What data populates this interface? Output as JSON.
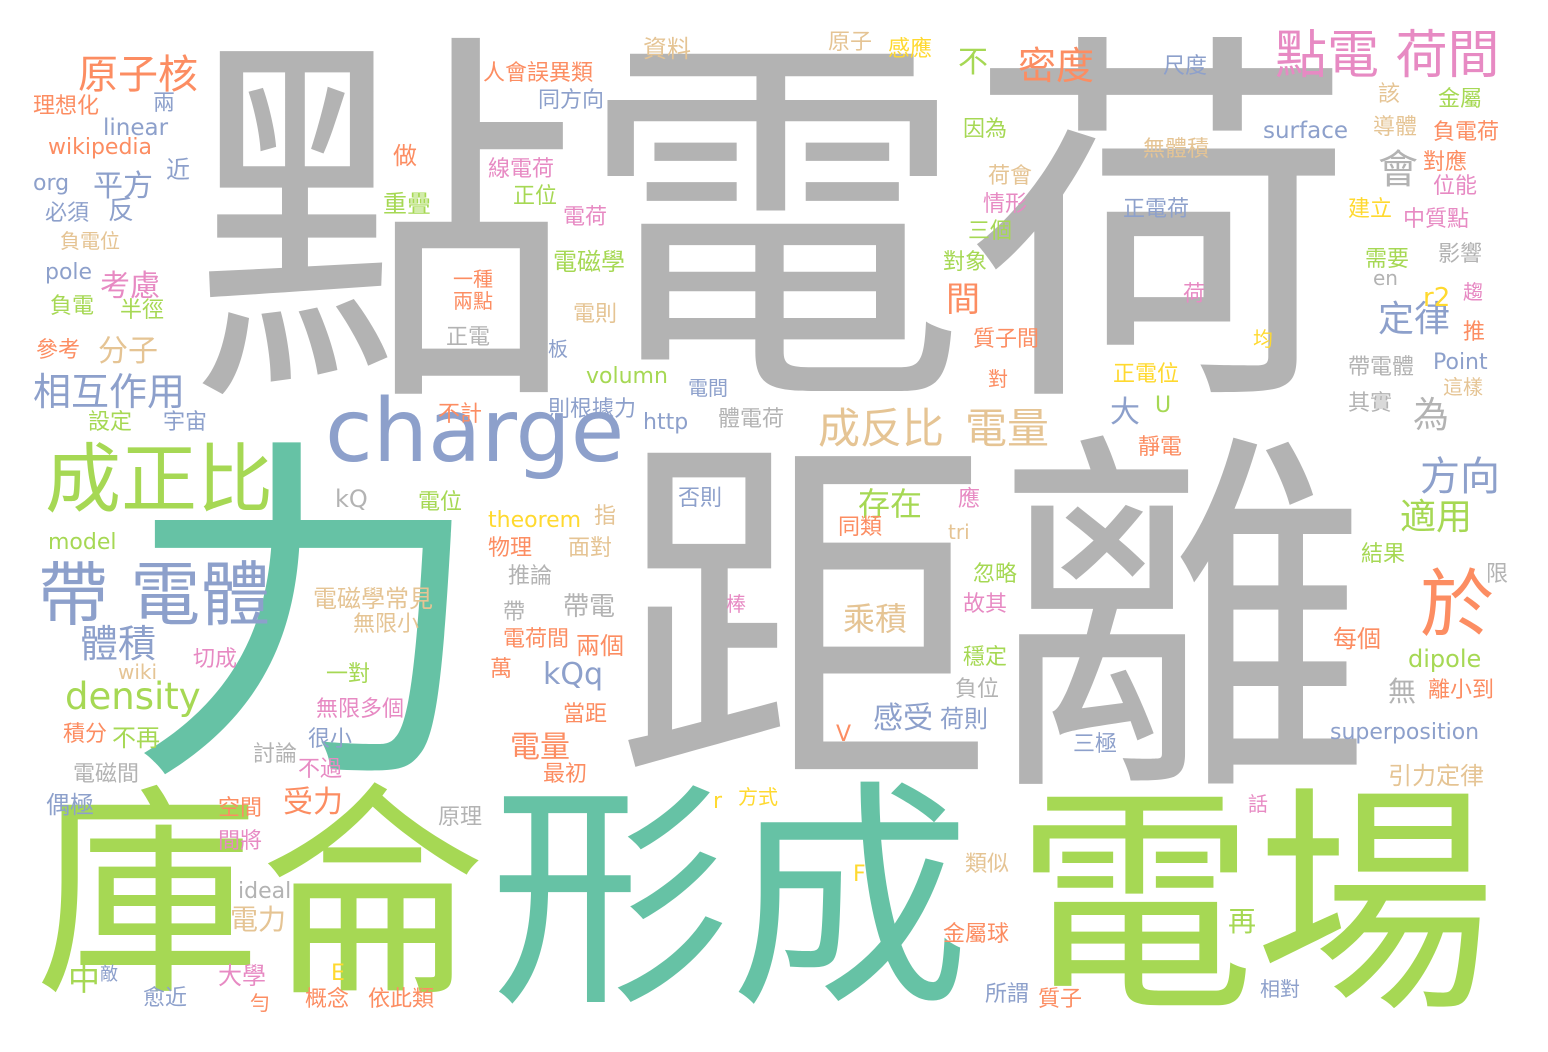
{
  "palette": {
    "gray": "#b3b3b3",
    "teal": "#66c2a5",
    "lime": "#a6d854",
    "blue": "#8da0cb",
    "orange": "#fc8d62",
    "pink": "#e78ac3",
    "tan": "#e5c494",
    "yellow": "#ffd92f"
  },
  "words": [
    {
      "text": "點電荷",
      "color": "#b3b3b3"
    },
    {
      "text": "距離",
      "color": "#b3b3b3"
    },
    {
      "text": "力",
      "color": "#66c2a5"
    },
    {
      "text": "庫侖",
      "color": "#a6d854"
    },
    {
      "text": "形成",
      "color": "#66c2a5"
    },
    {
      "text": "電場",
      "color": "#a6d854"
    },
    {
      "text": "charge",
      "color": "#8da0cb"
    },
    {
      "text": "成正比",
      "color": "#a6d854"
    },
    {
      "text": "帶 電體",
      "color": "#8da0cb"
    },
    {
      "text": "點電 荷間",
      "color": "#e78ac3"
    },
    {
      "text": "原子核",
      "color": "#fc8d62"
    },
    {
      "text": "密度",
      "color": "#fc8d62"
    },
    {
      "text": "不",
      "color": "#a6d854"
    },
    {
      "text": "會",
      "color": "#b3b3b3"
    },
    {
      "text": "於",
      "color": "#fc8d62"
    },
    {
      "text": "成反比",
      "color": "#e5c494"
    },
    {
      "text": "電量",
      "color": "#e5c494"
    },
    {
      "text": "density",
      "color": "#a6d854"
    },
    {
      "text": "相互作用",
      "color": "#8da0cb"
    },
    {
      "text": "體積",
      "color": "#8da0cb"
    },
    {
      "text": "方向",
      "color": "#8da0cb"
    },
    {
      "text": "適用",
      "color": "#a6d854"
    },
    {
      "text": "定律",
      "color": "#8da0cb"
    },
    {
      "text": "平方",
      "color": "#8da0cb"
    },
    {
      "text": "分子",
      "color": "#e5c494"
    },
    {
      "text": "考慮",
      "color": "#e78ac3"
    },
    {
      "text": "乘積",
      "color": "#e5c494"
    },
    {
      "text": "存在",
      "color": "#a6d854"
    },
    {
      "text": "感受",
      "color": "#8da0cb"
    },
    {
      "text": "荷則",
      "color": "#8da0cb"
    },
    {
      "text": "電量",
      "color": "#fc8d62"
    },
    {
      "text": "受力",
      "color": "#fc8d62"
    },
    {
      "text": "kQq",
      "color": "#8da0cb"
    },
    {
      "text": "間",
      "color": "#fc8d62"
    },
    {
      "text": "為",
      "color": "#b3b3b3"
    },
    {
      "text": "大",
      "color": "#8da0cb"
    },
    {
      "text": "U",
      "color": "#a6d854"
    },
    {
      "text": "中",
      "color": "#a6d854"
    },
    {
      "text": "敵",
      "color": "#8da0cb"
    },
    {
      "text": "無",
      "color": "#b3b3b3"
    },
    {
      "text": "離小到",
      "color": "#fc8d62"
    },
    {
      "text": "superposition",
      "color": "#8da0cb"
    },
    {
      "text": "surface",
      "color": "#8da0cb"
    },
    {
      "text": "linear",
      "color": "#8da0cb"
    },
    {
      "text": "wikipedia",
      "color": "#fc8d62"
    },
    {
      "text": "org",
      "color": "#8da0cb"
    },
    {
      "text": "必須",
      "color": "#8da0cb"
    },
    {
      "text": "反",
      "color": "#8da0cb"
    },
    {
      "text": "負電位",
      "color": "#e5c494"
    },
    {
      "text": "pole",
      "color": "#8da0cb"
    },
    {
      "text": "負電",
      "color": "#a6d854"
    },
    {
      "text": "半徑",
      "color": "#a6d854"
    },
    {
      "text": "參考",
      "color": "#fc8d62"
    },
    {
      "text": "設定",
      "color": "#a6d854"
    },
    {
      "text": "宇宙",
      "color": "#8da0cb"
    },
    {
      "text": "kQ",
      "color": "#b3b3b3"
    },
    {
      "text": "model",
      "color": "#a6d854"
    },
    {
      "text": "wiki",
      "color": "#e5c494"
    },
    {
      "text": "積分",
      "color": "#fc8d62"
    },
    {
      "text": "不再",
      "color": "#a6d854"
    },
    {
      "text": "電磁間",
      "color": "#b3b3b3"
    },
    {
      "text": "偶極",
      "color": "#8da0cb"
    },
    {
      "text": "愈近",
      "color": "#8da0cb"
    },
    {
      "text": "勻",
      "color": "#fc8d62"
    },
    {
      "text": "大學",
      "color": "#e78ac3"
    },
    {
      "text": "空間",
      "color": "#fc8d62"
    },
    {
      "text": "間將",
      "color": "#e78ac3"
    },
    {
      "text": "切成",
      "color": "#e78ac3"
    },
    {
      "text": "很小",
      "color": "#8da0cb"
    },
    {
      "text": "討論",
      "color": "#b3b3b3"
    },
    {
      "text": "不過",
      "color": "#e78ac3"
    },
    {
      "text": "無限多個",
      "color": "#e78ac3"
    },
    {
      "text": "一對",
      "color": "#a6d854"
    },
    {
      "text": "無限小",
      "color": "#e5c494"
    },
    {
      "text": "電磁學常見",
      "color": "#e5c494"
    },
    {
      "text": "電荷間",
      "color": "#fc8d62"
    },
    {
      "text": "兩個",
      "color": "#fc8d62"
    },
    {
      "text": "萬",
      "color": "#fc8d62"
    },
    {
      "text": "當距",
      "color": "#fc8d62"
    },
    {
      "text": "最初",
      "color": "#fc8d62"
    },
    {
      "text": "推論",
      "color": "#b3b3b3"
    },
    {
      "text": "帶",
      "color": "#b3b3b3"
    },
    {
      "text": "帶電",
      "color": "#b3b3b3"
    },
    {
      "text": "物理",
      "color": "#fc8d62"
    },
    {
      "text": "面對",
      "color": "#e5c494"
    },
    {
      "text": "theorem",
      "color": "#ffd92f"
    },
    {
      "text": "指",
      "color": "#e5c494"
    },
    {
      "text": "電位",
      "color": "#a6d854"
    },
    {
      "text": "則根據力",
      "color": "#8da0cb"
    },
    {
      "text": "不計",
      "color": "#fc8d62"
    },
    {
      "text": "http",
      "color": "#8da0cb"
    },
    {
      "text": "否則",
      "color": "#8da0cb"
    },
    {
      "text": "體電荷",
      "color": "#b3b3b3"
    },
    {
      "text": "電間",
      "color": "#8da0cb"
    },
    {
      "text": "volumn",
      "color": "#a6d854"
    },
    {
      "text": "板",
      "color": "#8da0cb"
    },
    {
      "text": "正電",
      "color": "#b3b3b3"
    },
    {
      "text": "一種",
      "color": "#fc8d62"
    },
    {
      "text": "兩點",
      "color": "#fc8d62"
    },
    {
      "text": "電則",
      "color": "#e5c494"
    },
    {
      "text": "電磁學",
      "color": "#a6d854"
    },
    {
      "text": "電荷",
      "color": "#e78ac3"
    },
    {
      "text": "正位",
      "color": "#a6d854"
    },
    {
      "text": "線電荷",
      "color": "#e78ac3"
    },
    {
      "text": "重疊",
      "color": "#a6d854"
    },
    {
      "text": "做",
      "color": "#fc8d62"
    },
    {
      "text": "同方向",
      "color": "#8da0cb"
    },
    {
      "text": "人會誤異類",
      "color": "#fc8d62"
    },
    {
      "text": "資料",
      "color": "#e5c494"
    },
    {
      "text": "原子",
      "color": "#e5c494"
    },
    {
      "text": "感應",
      "color": "#ffd92f"
    },
    {
      "text": "尺度",
      "color": "#8da0cb"
    },
    {
      "text": "該",
      "color": "#e5c494"
    },
    {
      "text": "金屬",
      "color": "#a6d854"
    },
    {
      "text": "導體",
      "color": "#e5c494"
    },
    {
      "text": "負電荷",
      "color": "#fc8d62"
    },
    {
      "text": "無體積",
      "color": "#e5c494"
    },
    {
      "text": "因為",
      "color": "#a6d854"
    },
    {
      "text": "荷會",
      "color": "#e5c494"
    },
    {
      "text": "情形",
      "color": "#e78ac3"
    },
    {
      "text": "三個",
      "color": "#a6d854"
    },
    {
      "text": "對象",
      "color": "#a6d854"
    },
    {
      "text": "正電荷",
      "color": "#8da0cb"
    },
    {
      "text": "對應",
      "color": "#fc8d62"
    },
    {
      "text": "位能",
      "color": "#e78ac3"
    },
    {
      "text": "建立",
      "color": "#ffd92f"
    },
    {
      "text": "中質點",
      "color": "#e78ac3"
    },
    {
      "text": "需要",
      "color": "#a6d854"
    },
    {
      "text": "影響",
      "color": "#b3b3b3"
    },
    {
      "text": "en",
      "color": "#b3b3b3"
    },
    {
      "text": "荷",
      "color": "#e78ac3"
    },
    {
      "text": "r2",
      "color": "#ffd92f"
    },
    {
      "text": "趨",
      "color": "#e78ac3"
    },
    {
      "text": "推",
      "color": "#fc8d62"
    },
    {
      "text": "均",
      "color": "#ffd92f"
    },
    {
      "text": "質子間",
      "color": "#fc8d62"
    },
    {
      "text": "正電位",
      "color": "#ffd92f"
    },
    {
      "text": "對",
      "color": "#fc8d62"
    },
    {
      "text": "帶電體",
      "color": "#b3b3b3"
    },
    {
      "text": "Point",
      "color": "#8da0cb"
    },
    {
      "text": "這樣",
      "color": "#e5c494"
    },
    {
      "text": "其實",
      "color": "#b3b3b3"
    },
    {
      "text": "靜電",
      "color": "#fc8d62"
    },
    {
      "text": "應",
      "color": "#e78ac3"
    },
    {
      "text": "同類",
      "color": "#fc8d62"
    },
    {
      "text": "tri",
      "color": "#e5c494"
    },
    {
      "text": "忽略",
      "color": "#a6d854"
    },
    {
      "text": "故其",
      "color": "#e78ac3"
    },
    {
      "text": "穩定",
      "color": "#a6d854"
    },
    {
      "text": "負位",
      "color": "#b3b3b3"
    },
    {
      "text": "V",
      "color": "#fc8d62"
    },
    {
      "text": "棒",
      "color": "#e78ac3"
    },
    {
      "text": "結果",
      "color": "#a6d854"
    },
    {
      "text": "限",
      "color": "#b3b3b3"
    },
    {
      "text": "每個",
      "color": "#fc8d62"
    },
    {
      "text": "dipole",
      "color": "#a6d854"
    },
    {
      "text": "三極",
      "color": "#8da0cb"
    },
    {
      "text": "引力定律",
      "color": "#e5c494"
    },
    {
      "text": "話",
      "color": "#e78ac3"
    },
    {
      "text": "再",
      "color": "#a6d854"
    },
    {
      "text": "相對",
      "color": "#8da0cb"
    },
    {
      "text": "質子",
      "color": "#fc8d62"
    },
    {
      "text": "所謂",
      "color": "#8da0cb"
    },
    {
      "text": "金屬球",
      "color": "#fc8d62"
    },
    {
      "text": "類似",
      "color": "#e5c494"
    },
    {
      "text": "F",
      "color": "#ffd92f"
    },
    {
      "text": "ideal",
      "color": "#b3b3b3"
    },
    {
      "text": "電力",
      "color": "#e5c494"
    },
    {
      "text": "E",
      "color": "#ffd92f"
    },
    {
      "text": "概念",
      "color": "#fc8d62"
    },
    {
      "text": "依此類",
      "color": "#fc8d62"
    },
    {
      "text": "原理",
      "color": "#b3b3b3"
    },
    {
      "text": "r",
      "color": "#ffd92f"
    },
    {
      "text": "方式",
      "color": "#ffd92f"
    },
    {
      "text": "近",
      "color": "#8da0cb"
    },
    {
      "text": "兩",
      "color": "#8da0cb"
    },
    {
      "text": "理想化",
      "color": "#fc8d62"
    }
  ]
}
